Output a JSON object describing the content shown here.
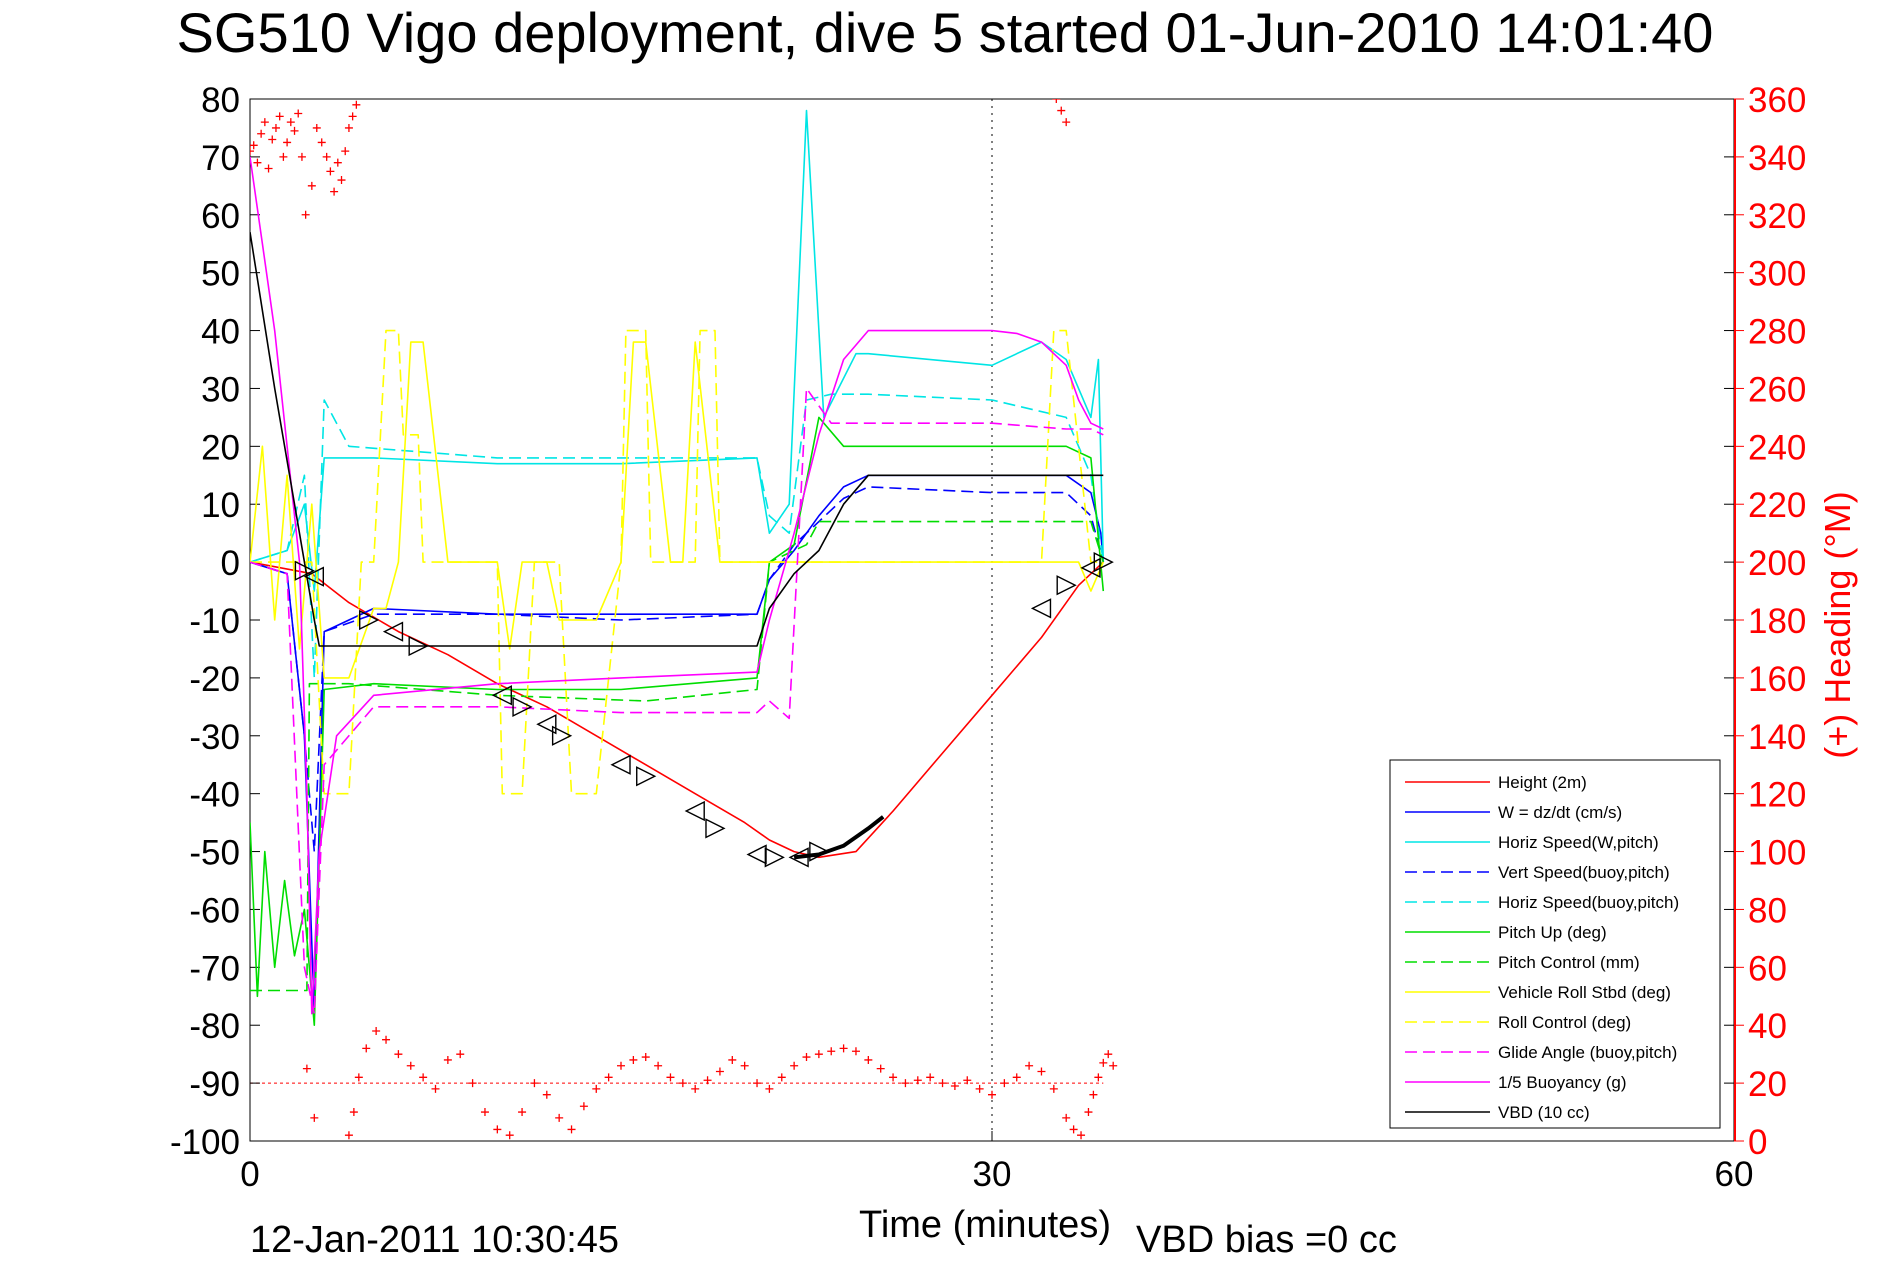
{
  "chart_data": {
    "type": "line",
    "title": "SG510 Vigo deployment, dive 5 started 01-Jun-2010 14:01:40",
    "xlabel": "Time (minutes)",
    "ylabel_right": "(+) Heading (°M)",
    "footer_left": "12-Jan-2011 10:30:45",
    "footer_right": "VBD bias =0 cc",
    "xlim": [
      0,
      60
    ],
    "ylim": [
      -100,
      80
    ],
    "ylim_right": [
      0,
      360
    ],
    "x_ticks": [
      "0",
      "30",
      "60"
    ],
    "y_ticks": [
      "80",
      "70",
      "60",
      "50",
      "40",
      "30",
      "20",
      "10",
      "0",
      "-10",
      "-20",
      "-30",
      "-40",
      "-50",
      "-60",
      "-70",
      "-80",
      "-90",
      "-100"
    ],
    "y_right_ticks": [
      "360",
      "340",
      "320",
      "300",
      "280",
      "260",
      "240",
      "220",
      "200",
      "180",
      "160",
      "140",
      "120",
      "100",
      "80",
      "60",
      "40",
      "20",
      "0"
    ],
    "grid": "dotted vertical line at x=30",
    "legend_position": "bottom-right",
    "colors": {
      "height": "#ff0000",
      "w": "#0000ff",
      "horiz_w": "#00e5e5",
      "pitch": "#00dd00",
      "roll": "#ffff00",
      "glide": "#ff00ff",
      "buoyancy": "#ff00ff",
      "vbd": "#000000",
      "heading": "#ff0000",
      "axis_right": "#ff0000"
    },
    "series": [
      {
        "key": "height",
        "name": "Height (2m)",
        "color": "#ff0000",
        "dash": "",
        "x": [
          0,
          2.5,
          4,
          6,
          8,
          10,
          12,
          14,
          16,
          18,
          20,
          21,
          22,
          23,
          24.5,
          26,
          28,
          30,
          32,
          33.5,
          34.5
        ],
        "y": [
          0,
          -2,
          -7,
          -12,
          -16,
          -21,
          -25,
          -30,
          -35,
          -40,
          -45,
          -48,
          -50,
          -51,
          -50,
          -43,
          -33,
          -23,
          -13,
          -4,
          0
        ]
      },
      {
        "key": "w",
        "name": "W = dz/dt (cm/s)",
        "color": "#0000ff",
        "dash": "",
        "x": [
          0,
          1.5,
          2.2,
          2.6,
          3,
          5,
          10,
          15,
          20.5,
          21,
          22,
          23,
          24,
          25,
          30,
          33,
          34,
          34.4,
          34.5
        ],
        "y": [
          0,
          -2,
          -30,
          -78,
          -12,
          -8,
          -9,
          -9,
          -9,
          -3,
          2,
          8,
          13,
          15,
          15,
          15,
          12,
          5,
          0
        ]
      },
      {
        "key": "horiz_w",
        "name": "Horiz Speed(W,pitch)",
        "color": "#00e5e5",
        "dash": "",
        "x": [
          0,
          1.5,
          2.2,
          2.6,
          3,
          5,
          10,
          15,
          20.5,
          21,
          21.8,
          22.5,
          23.2,
          24.5,
          25,
          30,
          32,
          33,
          34,
          34.3,
          34.5
        ],
        "y": [
          0,
          2,
          10,
          -5,
          18,
          18,
          17,
          17,
          18,
          5,
          10,
          78,
          25,
          36,
          36,
          34,
          38,
          35,
          25,
          35,
          0
        ]
      },
      {
        "key": "vert_buoy",
        "name": "Vert Speed(buoy,pitch)",
        "color": "#0000ff",
        "dash": "12 6",
        "x": [
          0,
          1.5,
          2.2,
          2.6,
          3,
          5,
          10,
          15,
          20.5,
          21,
          22,
          23,
          24,
          25,
          30,
          33,
          34,
          34.5
        ],
        "y": [
          0,
          -2,
          -30,
          -50,
          -12,
          -9,
          -9,
          -10,
          -9,
          -3,
          3,
          7,
          11,
          13,
          12,
          12,
          8,
          0
        ]
      },
      {
        "key": "horiz_buoy",
        "name": "Horiz Speed(buoy,pitch)",
        "color": "#00e5e5",
        "dash": "12 6",
        "x": [
          0,
          1.5,
          2.2,
          2.6,
          3,
          4,
          10,
          15,
          20.5,
          21,
          21.8,
          22.5,
          23.5,
          24.5,
          25,
          30,
          33,
          34,
          34.5
        ],
        "y": [
          0,
          2,
          15,
          -20,
          28,
          20,
          18,
          18,
          18,
          8,
          5,
          28,
          29,
          29,
          29,
          28,
          25,
          15,
          0
        ]
      },
      {
        "key": "pitch",
        "name": "Pitch Up (deg)",
        "color": "#00dd00",
        "dash": "",
        "x": [
          0,
          0.3,
          0.6,
          1,
          1.4,
          1.8,
          2.2,
          2.6,
          3,
          5,
          10,
          15,
          20.5,
          21,
          22,
          23,
          24,
          25,
          30,
          33,
          34,
          34.5
        ],
        "y": [
          -45,
          -75,
          -50,
          -70,
          -55,
          -68,
          -60,
          -80,
          -22,
          -21,
          -22,
          -22,
          -20,
          0,
          3,
          25,
          20,
          20,
          20,
          20,
          18,
          -5
        ]
      },
      {
        "key": "pitch_ctl",
        "name": "Pitch Control (mm)",
        "color": "#00dd00",
        "dash": "12 6",
        "x": [
          0,
          2.3,
          2.4,
          4,
          10,
          16,
          20.5,
          21,
          22.5,
          23,
          25,
          30,
          34,
          34.5
        ],
        "y": [
          -74,
          -74,
          -21,
          -21,
          -23,
          -24,
          -22,
          0,
          3,
          7,
          7,
          7,
          7,
          0
        ]
      },
      {
        "key": "roll",
        "name": "Vehicle Roll Stbd (deg)",
        "color": "#ffff00",
        "dash": "",
        "x": [
          0,
          0.5,
          1,
          1.5,
          2,
          2.5,
          3,
          4,
          5,
          5.5,
          6,
          6.5,
          7,
          8,
          9,
          10,
          10.5,
          11,
          12,
          12.5,
          14,
          15,
          15.5,
          16,
          17,
          17.5,
          18,
          19,
          20.5,
          21,
          22,
          25,
          30,
          32,
          33.5,
          34,
          34.5
        ],
        "y": [
          0,
          20,
          -10,
          15,
          -15,
          10,
          -20,
          -20,
          -8,
          -8,
          0,
          38,
          38,
          0,
          0,
          0,
          -15,
          0,
          0,
          -10,
          -10,
          0,
          38,
          38,
          0,
          0,
          38,
          0,
          0,
          0,
          0,
          0,
          0,
          0,
          0,
          -5,
          0
        ]
      },
      {
        "key": "roll_ctl",
        "name": "Roll Control (deg)",
        "color": "#ffff00",
        "dash": "12 6",
        "x": [
          0,
          2.5,
          3,
          4,
          4.5,
          5,
          5.5,
          6,
          6.2,
          6.8,
          7,
          10,
          10.2,
          11,
          11.5,
          12.5,
          13,
          14,
          15,
          15.2,
          16,
          16.2,
          18,
          18.2,
          18.8,
          19,
          20,
          20.5,
          22,
          30,
          32,
          32.5,
          33,
          34,
          34.5
        ],
        "y": [
          0,
          0,
          -40,
          -40,
          0,
          0,
          40,
          40,
          22,
          22,
          0,
          0,
          -40,
          -40,
          0,
          0,
          -40,
          -40,
          0,
          40,
          40,
          0,
          0,
          40,
          40,
          0,
          0,
          0,
          0,
          0,
          0,
          40,
          40,
          0,
          0
        ]
      },
      {
        "key": "glide",
        "name": "Glide Angle (buoy,pitch)",
        "color": "#ff00ff",
        "dash": "12 6",
        "x": [
          0,
          1.5,
          2.2,
          2.6,
          3,
          5,
          10,
          15,
          20.5,
          21,
          21.8,
          22.5,
          23.5,
          25,
          30,
          33,
          34,
          34.5
        ],
        "y": [
          0,
          -2,
          -70,
          -78,
          -35,
          -25,
          -25,
          -26,
          -26,
          -24,
          -27,
          30,
          24,
          24,
          24,
          23,
          23,
          22
        ]
      },
      {
        "key": "buoyancy",
        "name": "1/5 Buoyancy (g)",
        "color": "#ff00ff",
        "dash": "",
        "x": [
          0,
          0.5,
          1,
          1.5,
          2,
          2.3,
          2.5,
          2.8,
          3.5,
          5,
          10,
          15,
          20.5,
          21,
          22,
          23,
          24,
          25,
          28,
          30,
          31,
          32,
          33,
          33.5,
          34,
          34.5
        ],
        "y": [
          70,
          55,
          40,
          20,
          0,
          -40,
          -78,
          -50,
          -30,
          -23,
          -21,
          -20,
          -19,
          -10,
          5,
          22,
          35,
          40,
          40,
          40,
          39.5,
          38,
          34,
          28,
          24,
          23
        ]
      },
      {
        "key": "vbd",
        "name": "VBD (10 cc)",
        "color": "#000000",
        "dash": "",
        "x": [
          0,
          1,
          2,
          2.6,
          2.8,
          20.5,
          21,
          22,
          23,
          24,
          25,
          30,
          32,
          33,
          34,
          34.5
        ],
        "y": [
          57,
          30,
          5,
          -10,
          -14.5,
          -14.5,
          -8,
          -2,
          2,
          10,
          15,
          15,
          15,
          15,
          15,
          15
        ]
      }
    ],
    "heading_scatter": [
      [
        0,
        342
      ],
      [
        0.15,
        344
      ],
      [
        0.3,
        338
      ],
      [
        0.45,
        348
      ],
      [
        0.6,
        352
      ],
      [
        0.75,
        336
      ],
      [
        0.9,
        346
      ],
      [
        1.05,
        350
      ],
      [
        1.2,
        354
      ],
      [
        1.35,
        340
      ],
      [
        1.5,
        345
      ],
      [
        1.65,
        352
      ],
      [
        1.8,
        349
      ],
      [
        1.95,
        355
      ],
      [
        2.1,
        340
      ],
      [
        2.25,
        320
      ],
      [
        2.5,
        330
      ],
      [
        2.7,
        350
      ],
      [
        2.9,
        345
      ],
      [
        3.1,
        340
      ],
      [
        3.25,
        335
      ],
      [
        3.4,
        328
      ],
      [
        3.55,
        338
      ],
      [
        3.7,
        332
      ],
      [
        3.85,
        342
      ],
      [
        4.0,
        350
      ],
      [
        4.15,
        354
      ],
      [
        4.3,
        358
      ],
      [
        2.3,
        25
      ],
      [
        2.6,
        8
      ],
      [
        4.0,
        2
      ],
      [
        4.2,
        10
      ],
      [
        4.4,
        22
      ],
      [
        4.7,
        32
      ],
      [
        5.1,
        38
      ],
      [
        5.5,
        35
      ],
      [
        6.0,
        30
      ],
      [
        6.5,
        26
      ],
      [
        7.0,
        22
      ],
      [
        7.5,
        18
      ],
      [
        8.0,
        28
      ],
      [
        8.5,
        30
      ],
      [
        9.0,
        20
      ],
      [
        9.5,
        10
      ],
      [
        10.0,
        4
      ],
      [
        10.5,
        2
      ],
      [
        11.0,
        10
      ],
      [
        11.5,
        20
      ],
      [
        12.0,
        16
      ],
      [
        12.5,
        8
      ],
      [
        13.0,
        4
      ],
      [
        13.5,
        12
      ],
      [
        14.0,
        18
      ],
      [
        14.5,
        22
      ],
      [
        15.0,
        26
      ],
      [
        15.5,
        28
      ],
      [
        16.0,
        29
      ],
      [
        16.5,
        26
      ],
      [
        17.0,
        22
      ],
      [
        17.5,
        20
      ],
      [
        18.0,
        18
      ],
      [
        18.5,
        21
      ],
      [
        19.0,
        24
      ],
      [
        19.5,
        28
      ],
      [
        20.0,
        26
      ],
      [
        20.5,
        20
      ],
      [
        21.0,
        18
      ],
      [
        21.5,
        22
      ],
      [
        22.0,
        26
      ],
      [
        22.5,
        29
      ],
      [
        23.0,
        30
      ],
      [
        23.5,
        31
      ],
      [
        24.0,
        32
      ],
      [
        24.5,
        31
      ],
      [
        25.0,
        28
      ],
      [
        25.5,
        25
      ],
      [
        26.0,
        22
      ],
      [
        26.5,
        20
      ],
      [
        27.0,
        21
      ],
      [
        27.5,
        22
      ],
      [
        28.0,
        20
      ],
      [
        28.5,
        19
      ],
      [
        29.0,
        21
      ],
      [
        29.5,
        18
      ],
      [
        30.0,
        16
      ],
      [
        30.5,
        20
      ],
      [
        31.0,
        22
      ],
      [
        31.5,
        26
      ],
      [
        32.0,
        24
      ],
      [
        32.5,
        18
      ],
      [
        33.0,
        8
      ],
      [
        33.3,
        4
      ],
      [
        33.6,
        2
      ],
      [
        33.9,
        10
      ],
      [
        34.1,
        16
      ],
      [
        34.3,
        22
      ],
      [
        34.5,
        27
      ],
      [
        34.7,
        30
      ],
      [
        34.9,
        26
      ],
      [
        32.6,
        360
      ],
      [
        32.8,
        356
      ],
      [
        33.0,
        352
      ]
    ],
    "triangle_markers": [
      [
        2.2,
        -1.5
      ],
      [
        2.6,
        -2.5
      ],
      [
        4.8,
        -10
      ],
      [
        5.8,
        -12
      ],
      [
        6.8,
        -14.5
      ],
      [
        10.2,
        -23
      ],
      [
        11,
        -25
      ],
      [
        12,
        -28
      ],
      [
        12.6,
        -30
      ],
      [
        15,
        -35
      ],
      [
        16,
        -37
      ],
      [
        18,
        -43
      ],
      [
        18.8,
        -46
      ],
      [
        20.5,
        -50.5
      ],
      [
        21.2,
        -51
      ],
      [
        22.2,
        -51
      ],
      [
        23,
        -50
      ],
      [
        32,
        -8
      ],
      [
        33,
        -4
      ],
      [
        34,
        -1
      ],
      [
        34.5,
        0
      ]
    ]
  }
}
